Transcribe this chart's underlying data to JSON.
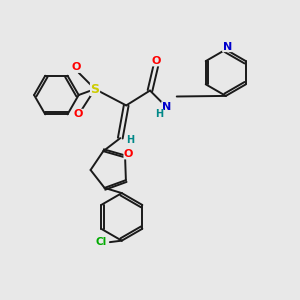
{
  "bg_color": "#e8e8e8",
  "bond_color": "#1a1a1a",
  "atom_colors": {
    "O": "#ff0000",
    "N": "#0000cc",
    "S": "#cccc00",
    "Cl": "#00aa00",
    "H": "#008888",
    "C": "#1a1a1a"
  },
  "figsize": [
    3.0,
    3.0
  ],
  "dpi": 100,
  "lw": 1.4,
  "fs": 7.5
}
